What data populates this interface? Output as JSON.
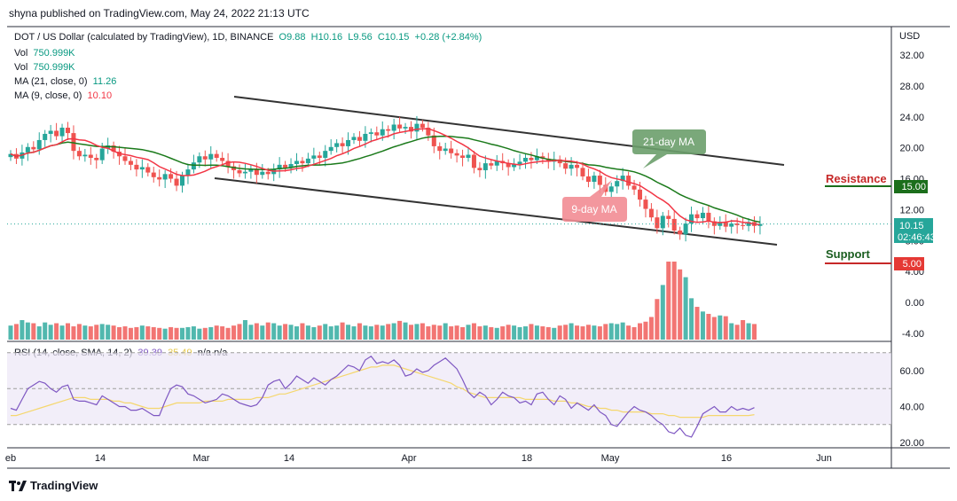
{
  "header": {
    "published": "shyna published on TradingView.com, May 24, 2022 21:13 UTC"
  },
  "legend": {
    "title": "DOT / US Dollar (calculated by TradingView), 1D, BINANCE",
    "open": "O9.88",
    "high": "H10.16",
    "low": "L9.56",
    "close": "C10.15",
    "change": "+0.28 (+2.84%)",
    "vol1_label": "Vol",
    "vol1_value": "750.999K",
    "vol2_label": "Vol",
    "vol2_value": "750.999K",
    "ma21_label": "MA (21, close, 0)",
    "ma21_value": "11.26",
    "ma9_label": "MA (9, close, 0)",
    "ma9_value": "10.10"
  },
  "rsi_legend": {
    "label": "RSI (14, close, SMA, 14, 2)",
    "value": "39.39",
    "sma_value": "35.49",
    "na": "n/a  n/a"
  },
  "annotations": {
    "ma21": "21-day MA",
    "ma9": "9-day MA",
    "resistance": "Resistance",
    "support": "Support"
  },
  "price_tags": {
    "current": "10.15",
    "countdown": "02:46:43",
    "resistance": "15.00",
    "support": "5.00"
  },
  "footer": {
    "brand": "TradingView"
  },
  "colors": {
    "up": "#26a69a",
    "down": "#ef5350",
    "ma9": "#f23645",
    "ma21": "#1b7a1b",
    "rsi": "#7e57c2",
    "rsi_sma": "#f5d76e",
    "channel": "#333333"
  },
  "chart_data": {
    "type": "candlestick",
    "currency": "USD",
    "y_ticks": [
      "32.00",
      "28.00",
      "24.00",
      "20.00",
      "16.00",
      "12.00",
      "8.00",
      "4.00",
      "0.00",
      "-4.00"
    ],
    "y_tick_values": [
      32,
      28,
      24,
      20,
      16,
      12,
      8,
      4,
      0,
      -4
    ],
    "ylim": [
      -5,
      34
    ],
    "x_ticks": [
      "eb",
      "14",
      "Mar",
      "14",
      "Apr",
      "18",
      "May",
      "16",
      "Jun"
    ],
    "rsi_ticks": [
      "60.00",
      "40.00",
      "20.00"
    ],
    "rsi_tick_values": [
      60,
      40,
      20
    ],
    "rsi_band": [
      30,
      70
    ],
    "closes": [
      19.2,
      18.6,
      19.4,
      20.1,
      19.8,
      21.0,
      21.8,
      22.2,
      21.5,
      22.6,
      21.9,
      19.6,
      18.9,
      19.1,
      18.7,
      18.4,
      19.9,
      20.3,
      19.5,
      18.9,
      18.3,
      17.8,
      17.2,
      17.5,
      16.8,
      16.2,
      15.9,
      16.6,
      16.0,
      15.1,
      16.4,
      17.2,
      18.1,
      18.9,
      18.5,
      19.2,
      18.7,
      18.3,
      17.6,
      17.1,
      16.7,
      16.9,
      17.3,
      16.5,
      16.9,
      16.6,
      17.2,
      17.8,
      17.4,
      17.9,
      18.3,
      18.0,
      18.6,
      19.0,
      18.7,
      19.6,
      20.1,
      20.6,
      20.2,
      21.0,
      21.4,
      20.9,
      21.8,
      22.0,
      21.6,
      22.4,
      22.2,
      23.0,
      22.5,
      22.7,
      22.1,
      23.1,
      22.6,
      21.6,
      20.2,
      19.6,
      19.9,
      19.3,
      19.0,
      18.7,
      19.1,
      17.4,
      17.1,
      18.0,
      17.7,
      18.3,
      18.0,
      17.5,
      17.9,
      18.2,
      18.7,
      18.4,
      18.9,
      18.6,
      18.2,
      18.5,
      18.0,
      17.3,
      17.8,
      17.4,
      16.3,
      15.6,
      16.4,
      15.2,
      14.3,
      15.0,
      15.7,
      16.4,
      15.1,
      14.6,
      13.3,
      12.1,
      11.0,
      9.6,
      11.2,
      10.8,
      9.3,
      8.8,
      10.2,
      11.4,
      10.9,
      11.6,
      10.5,
      9.9,
      10.4,
      9.8,
      10.2,
      10.0,
      9.9,
      10.4,
      9.9,
      10.15
    ],
    "volume_pct": [
      18,
      20,
      25,
      22,
      21,
      17,
      22,
      19,
      21,
      18,
      21,
      17,
      20,
      18,
      17,
      19,
      20,
      19,
      18,
      16,
      17,
      15,
      16,
      18,
      17,
      16,
      15,
      14,
      16,
      15,
      15,
      16,
      17,
      14,
      15,
      16,
      18,
      17,
      15,
      18,
      20,
      25,
      19,
      21,
      18,
      22,
      21,
      18,
      20,
      19,
      17,
      21,
      18,
      16,
      18,
      20,
      17,
      18,
      22,
      19,
      17,
      21,
      18,
      17,
      19,
      18,
      20,
      21,
      24,
      22,
      19,
      20,
      21,
      17,
      19,
      18,
      21,
      17,
      18,
      16,
      19,
      21,
      17,
      18,
      16,
      15,
      17,
      19,
      18,
      16,
      17,
      20,
      18,
      17,
      16,
      15,
      18,
      19,
      21,
      18,
      17,
      19,
      18,
      17,
      20,
      21,
      20,
      22,
      18,
      16,
      21,
      23,
      29,
      52,
      70,
      100,
      100,
      90,
      80,
      53,
      42,
      36,
      33,
      29,
      31,
      30,
      21,
      19,
      25,
      21,
      20
    ],
    "rsi": [
      39,
      38,
      44,
      50,
      52,
      54,
      53,
      50,
      48,
      51,
      52,
      44,
      43,
      43,
      42,
      41,
      46,
      44,
      42,
      40,
      40,
      38,
      38,
      39,
      37,
      35,
      35,
      43,
      50,
      52,
      51,
      47,
      46,
      44,
      42,
      43,
      44,
      47,
      46,
      44,
      42,
      41,
      40,
      41,
      45,
      52,
      54,
      55,
      50,
      53,
      57,
      55,
      53,
      56,
      54,
      52,
      55,
      57,
      60,
      63,
      62,
      60,
      66,
      68,
      64,
      65,
      64,
      66,
      63,
      57,
      58,
      61,
      59,
      60,
      63,
      65,
      67,
      64,
      61,
      55,
      48,
      45,
      48,
      46,
      41,
      44,
      48,
      46,
      45,
      42,
      43,
      41,
      47,
      48,
      44,
      41,
      46,
      44,
      39,
      42,
      40,
      38,
      41,
      37,
      35,
      30,
      29,
      33,
      37,
      40,
      38,
      37,
      35,
      32,
      30,
      26,
      25,
      28,
      24,
      23,
      29,
      36,
      38,
      40,
      37,
      37,
      40,
      38,
      39,
      38,
      39.39
    ],
    "rsi_sma": [
      35,
      35,
      36,
      37,
      38,
      39,
      40,
      41,
      42,
      43,
      44,
      45,
      45,
      45,
      44,
      44,
      44,
      44,
      43,
      43,
      42,
      42,
      41,
      40,
      39,
      39,
      39,
      40,
      41,
      42,
      42,
      42,
      42,
      42,
      43,
      43,
      43,
      43,
      44,
      44,
      44,
      44,
      44,
      45,
      45,
      45,
      46,
      47,
      47,
      48,
      49,
      50,
      51,
      52,
      53,
      54,
      55,
      56,
      57,
      58,
      59,
      60,
      61,
      62,
      62,
      63,
      63,
      63,
      62,
      61,
      60,
      59,
      58,
      57,
      56,
      55,
      54,
      53,
      51,
      50,
      48,
      47,
      46,
      45,
      45,
      45,
      45,
      45,
      45,
      45,
      44,
      44,
      44,
      44,
      44,
      43,
      43,
      43,
      42,
      42,
      41,
      40,
      40,
      39,
      39,
      38,
      38,
      37,
      37,
      37,
      37,
      37,
      36,
      36,
      36,
      35,
      35,
      34,
      34,
      34,
      34,
      34,
      35,
      35,
      35,
      35,
      35,
      35,
      35,
      35,
      35.49
    ]
  }
}
